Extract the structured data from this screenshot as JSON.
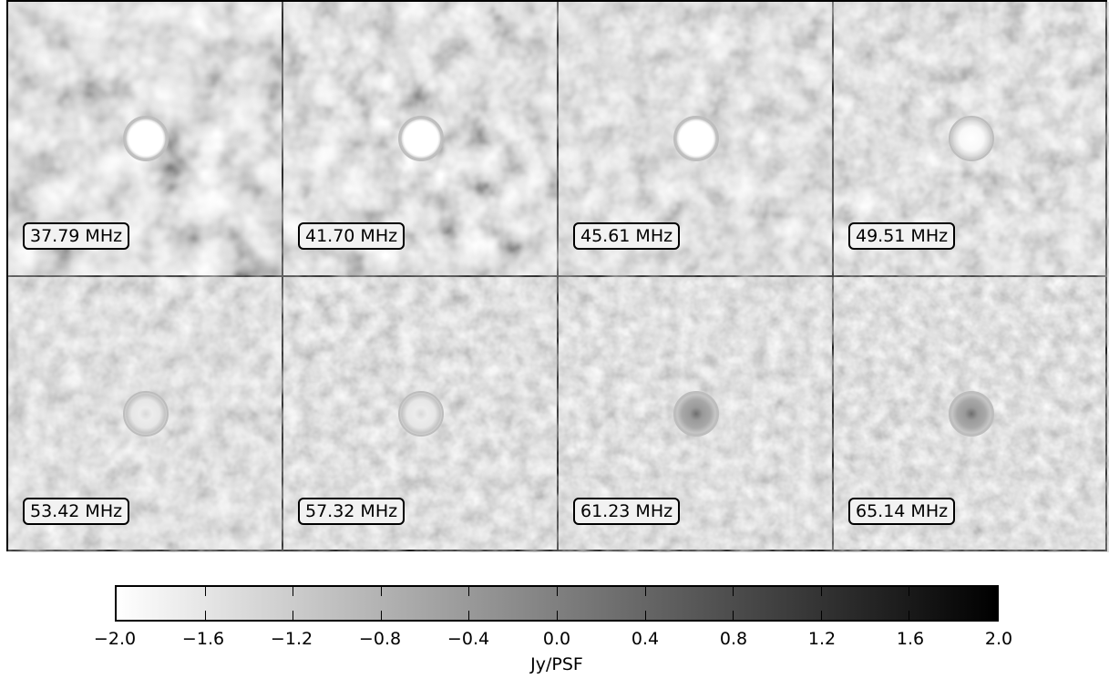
{
  "panels": [
    {
      "frequency": "37.79 MHz",
      "noise_level": 1.0,
      "source_brightness": "saturated"
    },
    {
      "frequency": "41.70 MHz",
      "noise_level": 0.9,
      "source_brightness": "saturated"
    },
    {
      "frequency": "45.61 MHz",
      "noise_level": 0.6,
      "source_brightness": "saturated"
    },
    {
      "frequency": "49.51 MHz",
      "noise_level": 0.5,
      "source_brightness": "bright"
    },
    {
      "frequency": "53.42 MHz",
      "noise_level": 0.35,
      "source_brightness": "moderate"
    },
    {
      "frequency": "57.32 MHz",
      "noise_level": 0.3,
      "source_brightness": "moderate"
    },
    {
      "frequency": "61.23 MHz",
      "noise_level": 0.25,
      "source_brightness": "faint"
    },
    {
      "frequency": "65.14 MHz",
      "noise_level": 0.22,
      "source_brightness": "faint"
    }
  ],
  "colorbar": {
    "label": "Jy/PSF",
    "ticks": [
      "−2.0",
      "−1.6",
      "−1.2",
      "−0.8",
      "−0.4",
      "0.0",
      "0.4",
      "0.8",
      "1.2",
      "1.6",
      "2.0"
    ],
    "min": -2.0,
    "max": 2.0,
    "colormap": "gray_r",
    "low_color": "#ffffff",
    "high_color": "#000000"
  }
}
